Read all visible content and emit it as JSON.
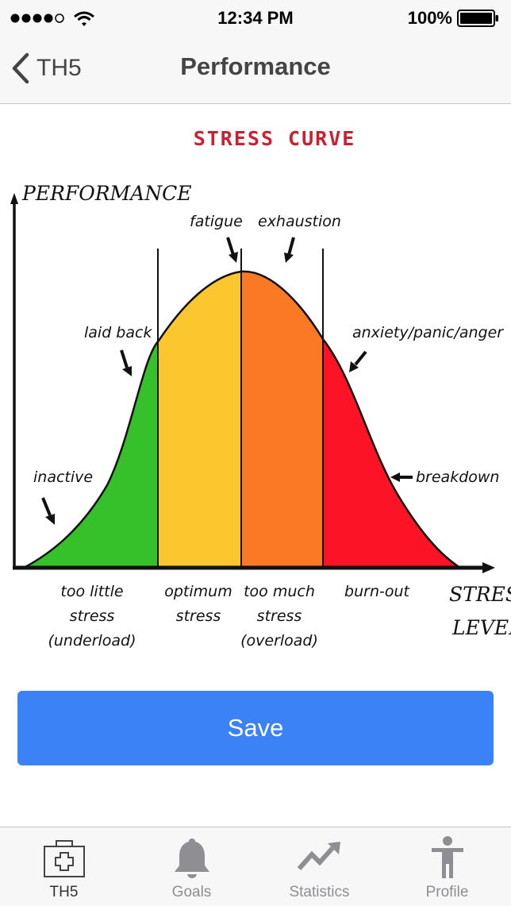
{
  "status_bar": {
    "time": "12:34 PM",
    "battery": "100%"
  },
  "nav": {
    "back_label": "TH5",
    "title": "Performance"
  },
  "figure": {
    "title": "STRESS CURVE",
    "y_axis_label": "PERFORMANCE",
    "x_axis_label_line1": "STRESS",
    "x_axis_label_line2": "LEVEL",
    "annotations": {
      "fatigue": "fatigue",
      "exhaustion": "exhaustion",
      "laid_back": "laid back",
      "anxiety": "anxiety/panic/anger",
      "inactive": "inactive",
      "breakdown": "breakdown"
    },
    "zones": [
      {
        "lines": [
          "too little",
          "stress",
          "(underload)"
        ],
        "color": "#36c02a"
      },
      {
        "lines": [
          "optimum",
          "stress"
        ],
        "color": "#fcc72e"
      },
      {
        "lines": [
          "too much",
          "stress",
          "(overload)"
        ],
        "color": "#fb7825"
      },
      {
        "lines": [
          "burn-out"
        ],
        "color": "#fc1426"
      }
    ],
    "title_color": "#cc1f2f"
  },
  "save_label": "Save",
  "accent_color": "#3b82f6",
  "tabs": [
    {
      "label": "TH5",
      "icon": "first-aid-kit-icon",
      "active": true
    },
    {
      "label": "Goals",
      "icon": "bell-icon",
      "active": false
    },
    {
      "label": "Statistics",
      "icon": "trending-up-icon",
      "active": false
    },
    {
      "label": "Profile",
      "icon": "person-icon",
      "active": false
    }
  ]
}
